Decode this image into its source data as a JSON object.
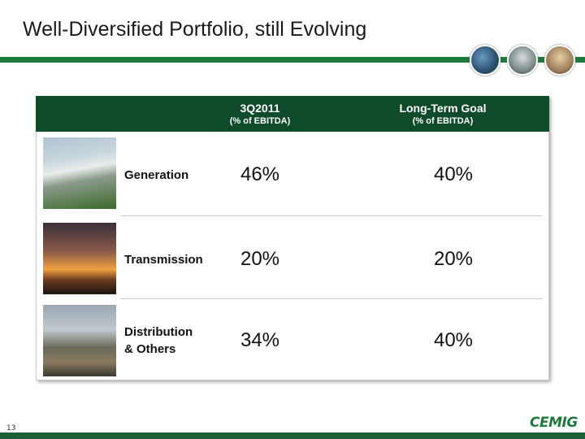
{
  "header": {
    "title": "Well-Diversified Portfolio, still Evolving"
  },
  "table": {
    "columns": [
      {
        "title": "3Q2011",
        "subtitle": "(% of EBITDA)"
      },
      {
        "title": "Long-Term Goal",
        "subtitle": "(% of EBITDA)"
      }
    ],
    "rows": [
      [
        "Generation",
        "46%",
        "40%"
      ],
      [
        "Transmission",
        "20%",
        "20%"
      ],
      [
        "Distribution & Others",
        "34%",
        "40%"
      ]
    ]
  },
  "footer": {
    "page_number": "13",
    "logo": "CEMIG"
  }
}
